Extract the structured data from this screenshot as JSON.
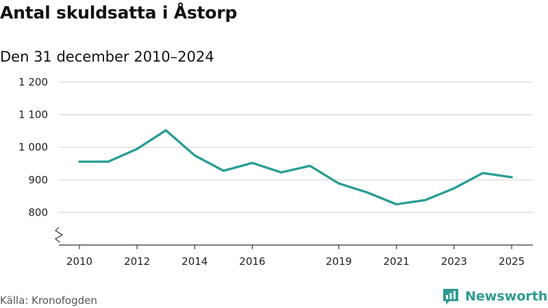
{
  "header": {
    "title": "Antal skuldsatta i Åstorp",
    "subtitle": "Den 31 december 2010–2024"
  },
  "footer": {
    "source": "Källa: Kronofogden",
    "brand": "Newsworthy",
    "brand_icon": "newsworthy-logo-icon"
  },
  "colors": {
    "line": "#2a9d93",
    "grid": "#d9d9d9",
    "axis": "#333333",
    "brand": "#2e9a92"
  },
  "chart_data": {
    "type": "line",
    "title": "Antal skuldsatta i Åstorp",
    "subtitle": "Den 31 december 2010–2024",
    "xlabel": "",
    "ylabel": "",
    "x": [
      2010,
      2011,
      2012,
      2013,
      2014,
      2015,
      2016,
      2017,
      2018,
      2019,
      2020,
      2021,
      2022,
      2023,
      2024,
      2025
    ],
    "series": [
      {
        "name": "Antal skuldsatta",
        "values": [
          956,
          956,
          995,
          1052,
          975,
          928,
          952,
          923,
          943,
          889,
          861,
          825,
          838,
          874,
          921,
          908
        ]
      }
    ],
    "xlim": [
      2010,
      2025
    ],
    "ylim": [
      700,
      1200
    ],
    "xticks": [
      2010,
      2012,
      2014,
      2016,
      2019,
      2021,
      2023,
      2025
    ],
    "xtick_labels": [
      "2010",
      "2012",
      "2014",
      "2016",
      "2019",
      "2021",
      "2023",
      "2025"
    ],
    "yticks": [
      800,
      900,
      1000,
      1100,
      1200
    ],
    "ytick_labels": [
      "800",
      "900",
      "1 000",
      "1 100",
      "1 200"
    ],
    "grid": true,
    "y_axis_break": true
  }
}
